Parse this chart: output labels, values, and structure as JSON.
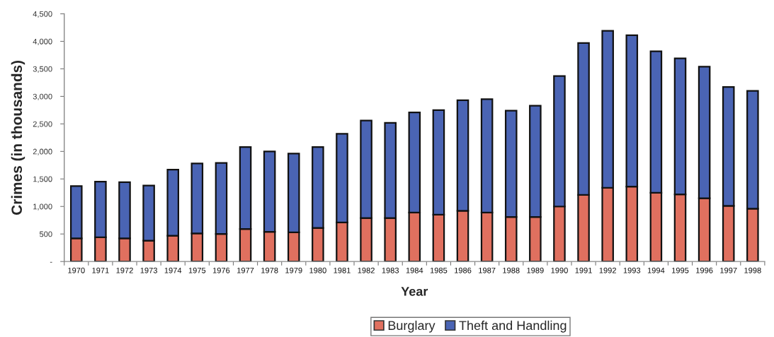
{
  "chart_data": {
    "type": "bar",
    "stacked": true,
    "xlabel": "Year",
    "ylabel": "Crimes (in thousands)",
    "categories": [
      "1970",
      "1971",
      "1972",
      "1973",
      "1974",
      "1975",
      "1976",
      "1977",
      "1978",
      "1979",
      "1980",
      "1981",
      "1982",
      "1983",
      "1984",
      "1985",
      "1986",
      "1987",
      "1988",
      "1989",
      "1990",
      "1991",
      "1992",
      "1993",
      "1994",
      "1995",
      "1996",
      "1997",
      "1998"
    ],
    "series": [
      {
        "name": "Burglary",
        "color": "#e0705f",
        "values": [
          420,
          440,
          420,
          380,
          470,
          510,
          500,
          590,
          540,
          530,
          610,
          710,
          790,
          790,
          890,
          850,
          920,
          890,
          810,
          810,
          1000,
          1210,
          1340,
          1360,
          1250,
          1220,
          1150,
          1010,
          960
        ]
      },
      {
        "name": "Theft and Handling",
        "color": "#4a64b4",
        "values": [
          950,
          1010,
          1020,
          1000,
          1200,
          1270,
          1290,
          1490,
          1460,
          1430,
          1470,
          1610,
          1770,
          1730,
          1820,
          1900,
          2010,
          2060,
          1930,
          2020,
          2370,
          2760,
          2850,
          2750,
          2570,
          2470,
          2390,
          2160,
          2140
        ]
      }
    ],
    "ylim": [
      0,
      4500
    ],
    "yticks": [
      {
        "value": 0,
        "label": "-"
      },
      500,
      {
        "value": 1000,
        "label": "1,000"
      },
      {
        "value": 1500,
        "label": "1,500"
      },
      {
        "value": 2000,
        "label": "2,000"
      },
      {
        "value": 2500,
        "label": "2,500"
      },
      {
        "value": 3000,
        "label": "3,000"
      },
      {
        "value": 3500,
        "label": "3,500"
      },
      {
        "value": 4000,
        "label": "4,000"
      },
      {
        "value": 4500,
        "label": "4,500"
      }
    ],
    "legend": "bottom"
  }
}
